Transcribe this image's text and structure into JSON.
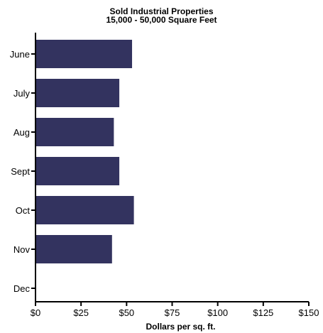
{
  "chart_data": {
    "type": "bar",
    "orientation": "horizontal",
    "title": "Sold Industrial Properties",
    "subtitle": "15,000 - 50,000 Square Feet",
    "xlabel": "Dollars per sq. ft.",
    "ylabel": "",
    "categories": [
      "June",
      "July",
      "Aug",
      "Sept",
      "Oct",
      "Nov",
      "Dec"
    ],
    "values": [
      53,
      46,
      43,
      46,
      54,
      42,
      null
    ],
    "xlim": [
      0,
      150
    ],
    "xticks": [
      0,
      25,
      50,
      75,
      100,
      125,
      150
    ],
    "xtick_labels": [
      "$0",
      "$25",
      "$50",
      "$75",
      "$100",
      "$125",
      "$150"
    ],
    "bar_color": "#33335f",
    "grid": false,
    "legend": "none"
  }
}
